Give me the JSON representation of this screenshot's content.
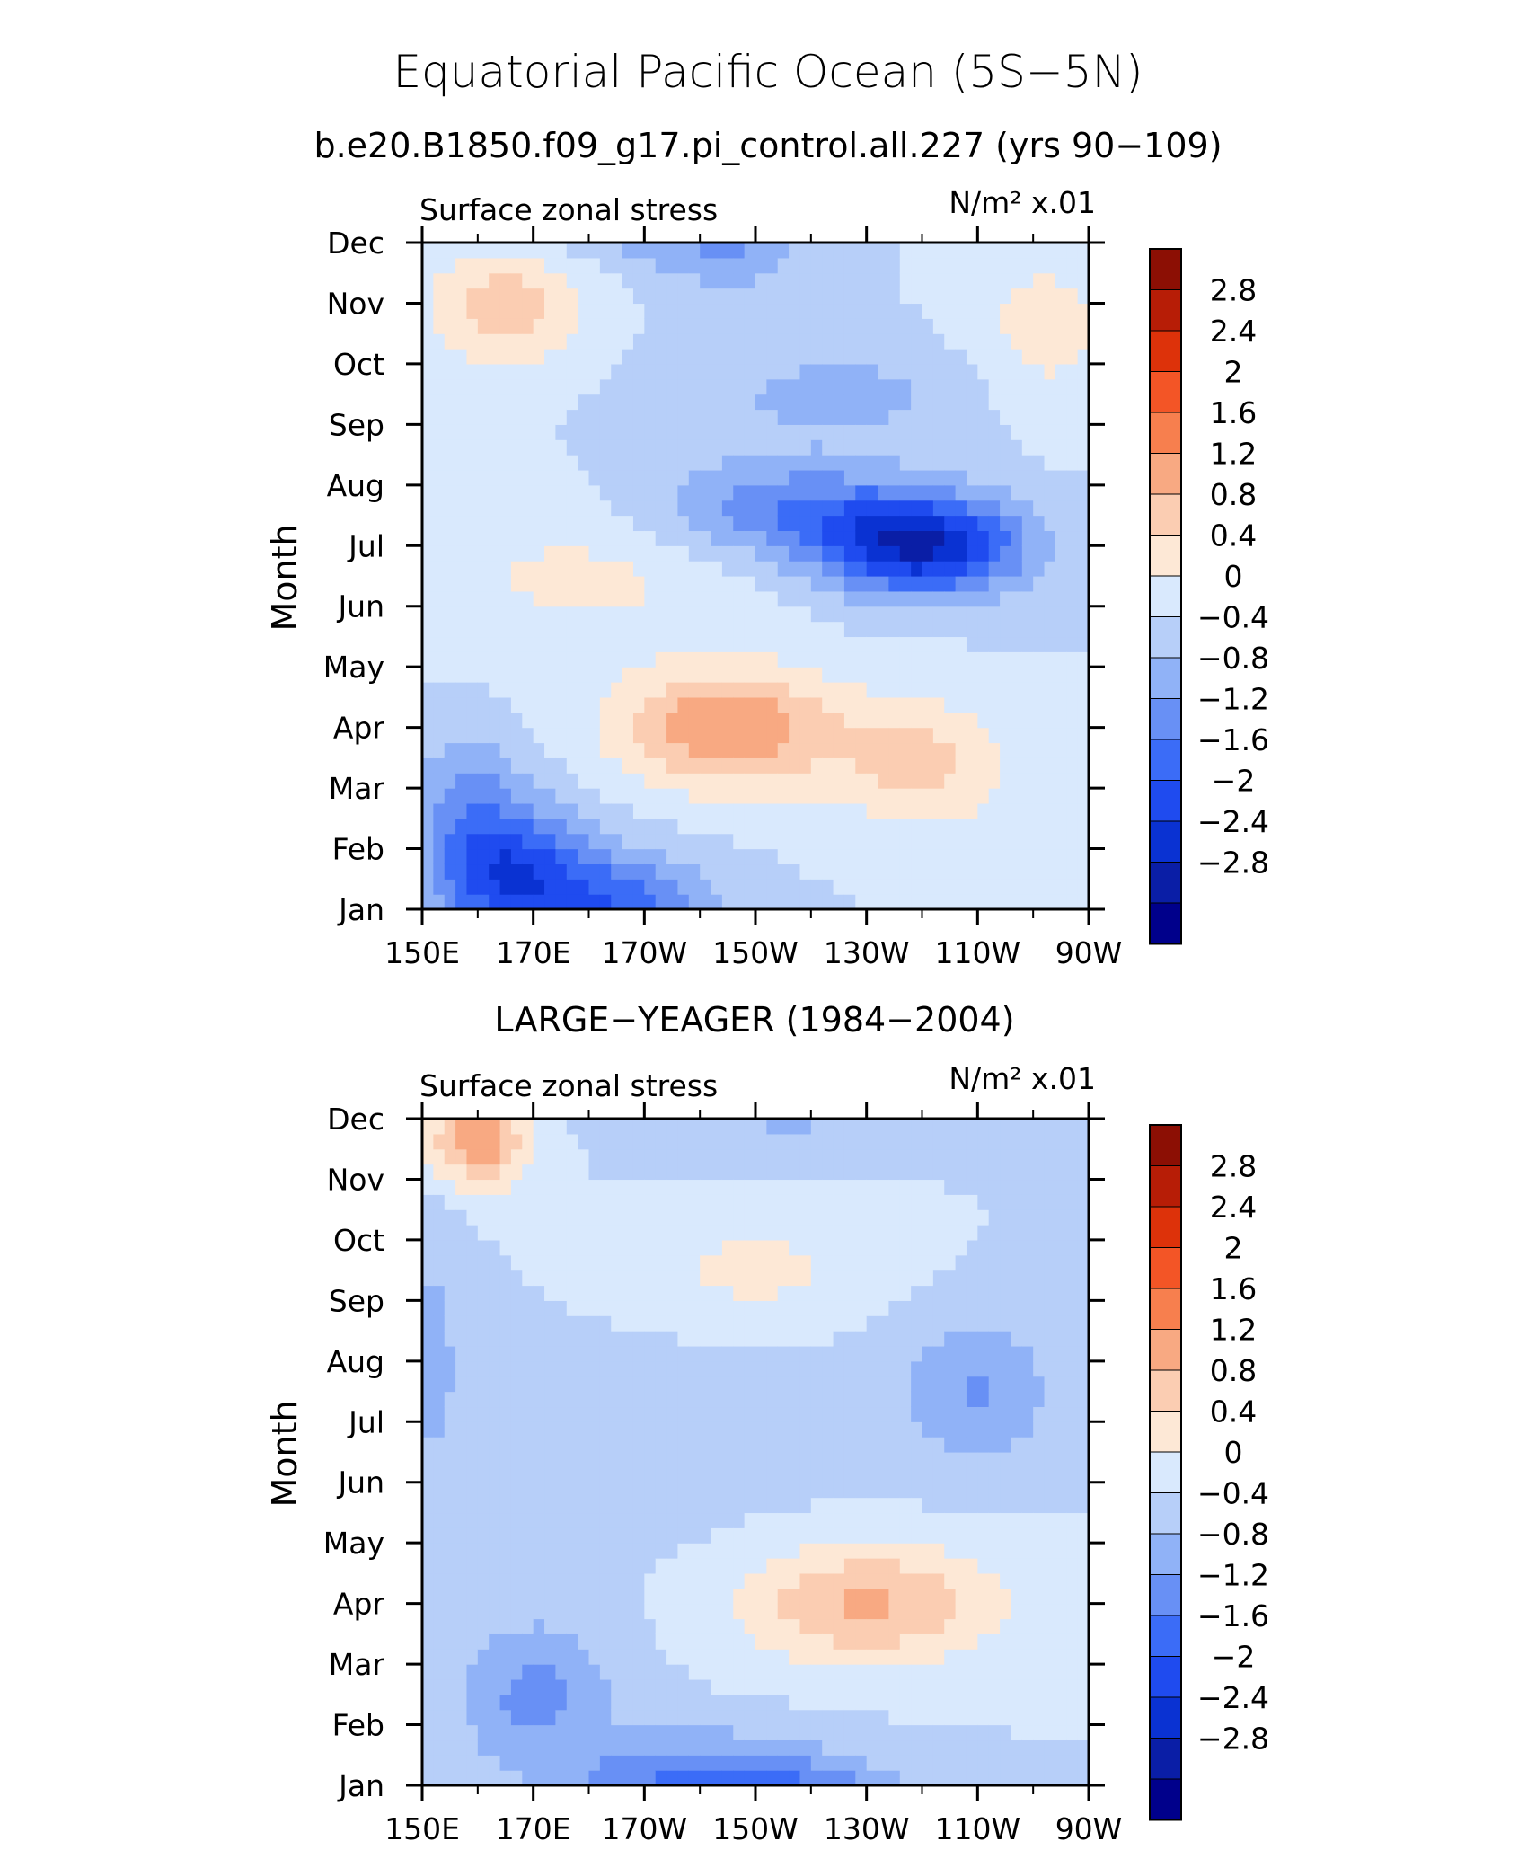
{
  "title": "Equatorial Pacific Ocean (5S−5N)",
  "chart_data": [
    {
      "type": "heatmap",
      "title": "b.e20.B1850.f09_g17.pi_control.all.227 (yrs 90−109)",
      "left_label": "Surface zonal stress",
      "units_label": "N/m² x.01",
      "ylabel": "Month",
      "x_ticks": [
        "150E",
        "170E",
        "170W",
        "150W",
        "130W",
        "110W",
        "90W"
      ],
      "y_ticks": [
        "Jan",
        "Feb",
        "Mar",
        "Apr",
        "May",
        "Jun",
        "Jul",
        "Aug",
        "Sep",
        "Oct",
        "Nov",
        "Dec"
      ],
      "xlim": [
        150,
        270
      ],
      "levels": [
        -2.8,
        -2.4,
        -2,
        -1.6,
        -1.2,
        -0.8,
        -0.4,
        0,
        0.4,
        0.8,
        1.2,
        1.6,
        2,
        2.4,
        2.8
      ],
      "level_labels": [
        "2.8",
        "2.4",
        "2",
        "1.6",
        "1.2",
        "0.8",
        "0.4",
        "0",
        "−0.4",
        "−0.8",
        "−1.2",
        "−1.6",
        "−2",
        "−2.4",
        "−2.8"
      ],
      "features": [
        {
          "lon": 165,
          "month": 0.6,
          "value": -1.9,
          "slon": 14,
          "smon": 1.1
        },
        {
          "lon": 185,
          "month": 0.0,
          "value": -1.4,
          "slon": 16,
          "smon": 0.9
        },
        {
          "lon": 158,
          "month": 2.0,
          "value": -0.7,
          "slon": 10,
          "smon": 1.0
        },
        {
          "lon": 205,
          "month": 3.0,
          "value": 1.6,
          "slon": 20,
          "smon": 1.0
        },
        {
          "lon": 240,
          "month": 2.4,
          "value": 0.9,
          "slon": 16,
          "smon": 1.1
        },
        {
          "lon": 180,
          "month": 5.5,
          "value": 0.5,
          "slon": 30,
          "smon": 1.2
        },
        {
          "lon": 240,
          "month": 6.0,
          "value": -2.4,
          "slon": 18,
          "smon": 0.8
        },
        {
          "lon": 215,
          "month": 6.6,
          "value": -1.1,
          "slon": 24,
          "smon": 0.8
        },
        {
          "lon": 225,
          "month": 8.5,
          "value": -0.5,
          "slon": 30,
          "smon": 0.9
        },
        {
          "lon": 165,
          "month": 10.0,
          "value": 1.0,
          "slon": 14,
          "smon": 1.1
        },
        {
          "lon": 262,
          "month": 9.5,
          "value": 0.6,
          "slon": 14,
          "smon": 1.4
        },
        {
          "lon": 205,
          "month": 11.0,
          "value": -0.8,
          "slon": 14,
          "smon": 0.8
        }
      ]
    },
    {
      "type": "heatmap",
      "title": "LARGE−YEAGER (1984−2004)",
      "left_label": "Surface zonal stress",
      "units_label": "N/m² x.01",
      "ylabel": "Month",
      "x_ticks": [
        "150E",
        "170E",
        "170W",
        "150W",
        "130W",
        "110W",
        "90W"
      ],
      "y_ticks": [
        "Jan",
        "Feb",
        "Mar",
        "Apr",
        "May",
        "Jun",
        "Jul",
        "Aug",
        "Sep",
        "Oct",
        "Nov",
        "Dec"
      ],
      "xlim": [
        150,
        270
      ],
      "levels": [
        -2.8,
        -2.4,
        -2,
        -1.6,
        -1.2,
        -0.8,
        -0.4,
        0,
        0.4,
        0.8,
        1.2,
        1.6,
        2,
        2.4,
        2.8
      ],
      "level_labels": [
        "2.8",
        "2.4",
        "2",
        "1.6",
        "1.2",
        "0.8",
        "0.4",
        "0",
        "−0.4",
        "−0.8",
        "−1.2",
        "−1.6",
        "−2",
        "−2.4",
        "−2.8"
      ],
      "features": [
        {
          "lon": 160,
          "month": 10.7,
          "value": 1.6,
          "slon": 9,
          "smon": 0.8
        },
        {
          "lon": 210,
          "month": 8.5,
          "value": 0.55,
          "slon": 22,
          "smon": 0.8
        },
        {
          "lon": 230,
          "month": 3.0,
          "value": 1.3,
          "slon": 24,
          "smon": 1.0
        },
        {
          "lon": 200,
          "month": 0.0,
          "value": -1.3,
          "slon": 24,
          "smon": 0.8
        },
        {
          "lon": 170,
          "month": 1.5,
          "value": -0.9,
          "slon": 14,
          "smon": 1.2
        },
        {
          "lon": 250,
          "month": 6.5,
          "value": -0.8,
          "slon": 14,
          "smon": 1.2
        },
        {
          "lon": 220,
          "month": 11.6,
          "value": -0.9,
          "slon": 18,
          "smon": 0.7
        },
        {
          "lon": 152,
          "month": 7.0,
          "value": -0.5,
          "slon": 6,
          "smon": 2.5
        },
        {
          "lon": 200,
          "month": 5.0,
          "value": -0.1,
          "slon": 40,
          "smon": 3.0
        }
      ]
    }
  ],
  "palette": [
    "#00008b",
    "#0a1ea6",
    "#0a32d2",
    "#1f4bef",
    "#3b6cf7",
    "#6890f5",
    "#90b2f7",
    "#b7cff9",
    "#d9e9fd",
    "#fde8d6",
    "#fbcdb2",
    "#f8a982",
    "#f77f4e",
    "#f35526",
    "#dd320a",
    "#b71d06",
    "#8c0f04"
  ]
}
